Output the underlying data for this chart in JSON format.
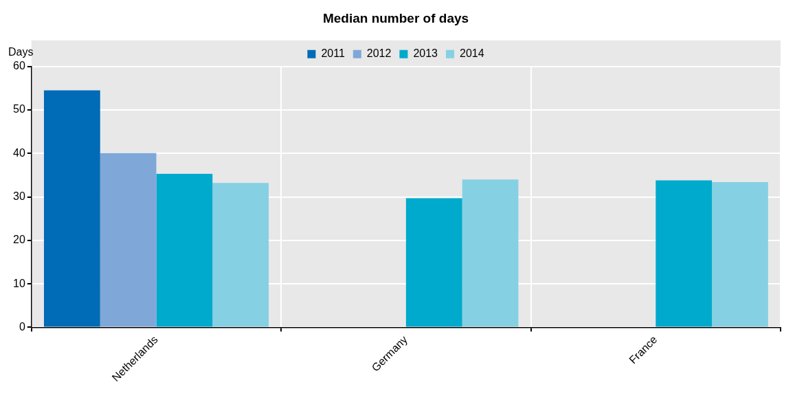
{
  "chart_data": {
    "type": "bar",
    "title": "Median number of days",
    "ylabel": "Days",
    "categories": [
      "Netherlands",
      "Germany",
      "France"
    ],
    "series": [
      {
        "name": "2011",
        "color": "#006bb6",
        "values": [
          54.5,
          null,
          null
        ]
      },
      {
        "name": "2012",
        "color": "#7fa8d9",
        "values": [
          40.1,
          null,
          null
        ]
      },
      {
        "name": "2013",
        "color": "#00aacc",
        "values": [
          35.3,
          29.7,
          33.8
        ]
      },
      {
        "name": "2014",
        "color": "#86d0e3",
        "values": [
          33.2,
          34.0,
          33.4
        ]
      }
    ],
    "ylim": [
      0,
      60
    ],
    "yticks": [
      0,
      10,
      20,
      30,
      40,
      50,
      60
    ],
    "grid": true,
    "legend": "top"
  }
}
